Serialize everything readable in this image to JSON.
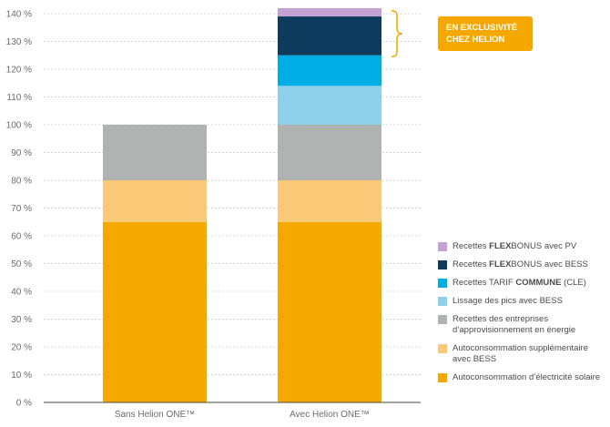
{
  "chart_data": {
    "type": "stacked_bar",
    "categories": [
      "Sans Helion ONE™",
      "Avec Helion ONE™"
    ],
    "ylim": [
      0,
      140
    ],
    "ytick_step": 10,
    "yunit": " %",
    "series": [
      {
        "name": "Autoconsommation d'électricité solaire",
        "color": "#f5a800",
        "values": [
          65,
          65
        ]
      },
      {
        "name": "Autoconsommation supplémentaire avec BESS",
        "color": "#f9c977",
        "values": [
          15,
          15
        ]
      },
      {
        "name": "Recettes des entreprises d'approvisionnement en énergie",
        "color": "#b1b3b3",
        "values": [
          20,
          20
        ]
      },
      {
        "name": "Lissage des pics avec BESS",
        "color": "#8ed0ea",
        "values": [
          0,
          14
        ]
      },
      {
        "name": "Recettes TARIF COMMUNE (CLE)",
        "color": "#00aee5",
        "values": [
          0,
          11
        ]
      },
      {
        "name": "Recettes FLEXBONUS avec BESS",
        "color": "#0d3b5e",
        "values": [
          0,
          14
        ]
      },
      {
        "name": "Recettes FLEXBONUS avec PV",
        "color": "#c4a3d4",
        "values": [
          0,
          3
        ]
      }
    ],
    "annotation": {
      "lines": [
        "EN EXCLUSIVITÉ",
        "CHEZ HELION"
      ],
      "color": "#f5a800"
    },
    "legend": [
      {
        "parts": [
          {
            "t": "Recettes ",
            "b": false
          },
          {
            "t": "FLEX",
            "b": true
          },
          {
            "t": "BONUS avec PV",
            "b": false
          }
        ],
        "color": "#c4a3d4"
      },
      {
        "parts": [
          {
            "t": "Recettes ",
            "b": false
          },
          {
            "t": "FLEX",
            "b": true
          },
          {
            "t": "BONUS avec BESS",
            "b": false
          }
        ],
        "color": "#0d3b5e"
      },
      {
        "parts": [
          {
            "t": "Recettes TARIF ",
            "b": false
          },
          {
            "t": "COMMUNE",
            "b": true
          },
          {
            "t": " (CLE)",
            "b": false
          }
        ],
        "color": "#00aee5"
      },
      {
        "parts": [
          {
            "t": "Lissage des pics avec BESS",
            "b": false
          }
        ],
        "color": "#8ed0ea"
      },
      {
        "parts": [
          {
            "t": "Recettes des entreprises d’approvisionnement en énergie",
            "b": false
          }
        ],
        "color": "#b1b3b3"
      },
      {
        "parts": [
          {
            "t": "Autoconsommation supplémentaire avec BESS",
            "b": false
          }
        ],
        "color": "#f9c977"
      },
      {
        "parts": [
          {
            "t": "Autoconsommation d’électricité solaire",
            "b": false
          }
        ],
        "color": "#f5a800"
      }
    ]
  }
}
